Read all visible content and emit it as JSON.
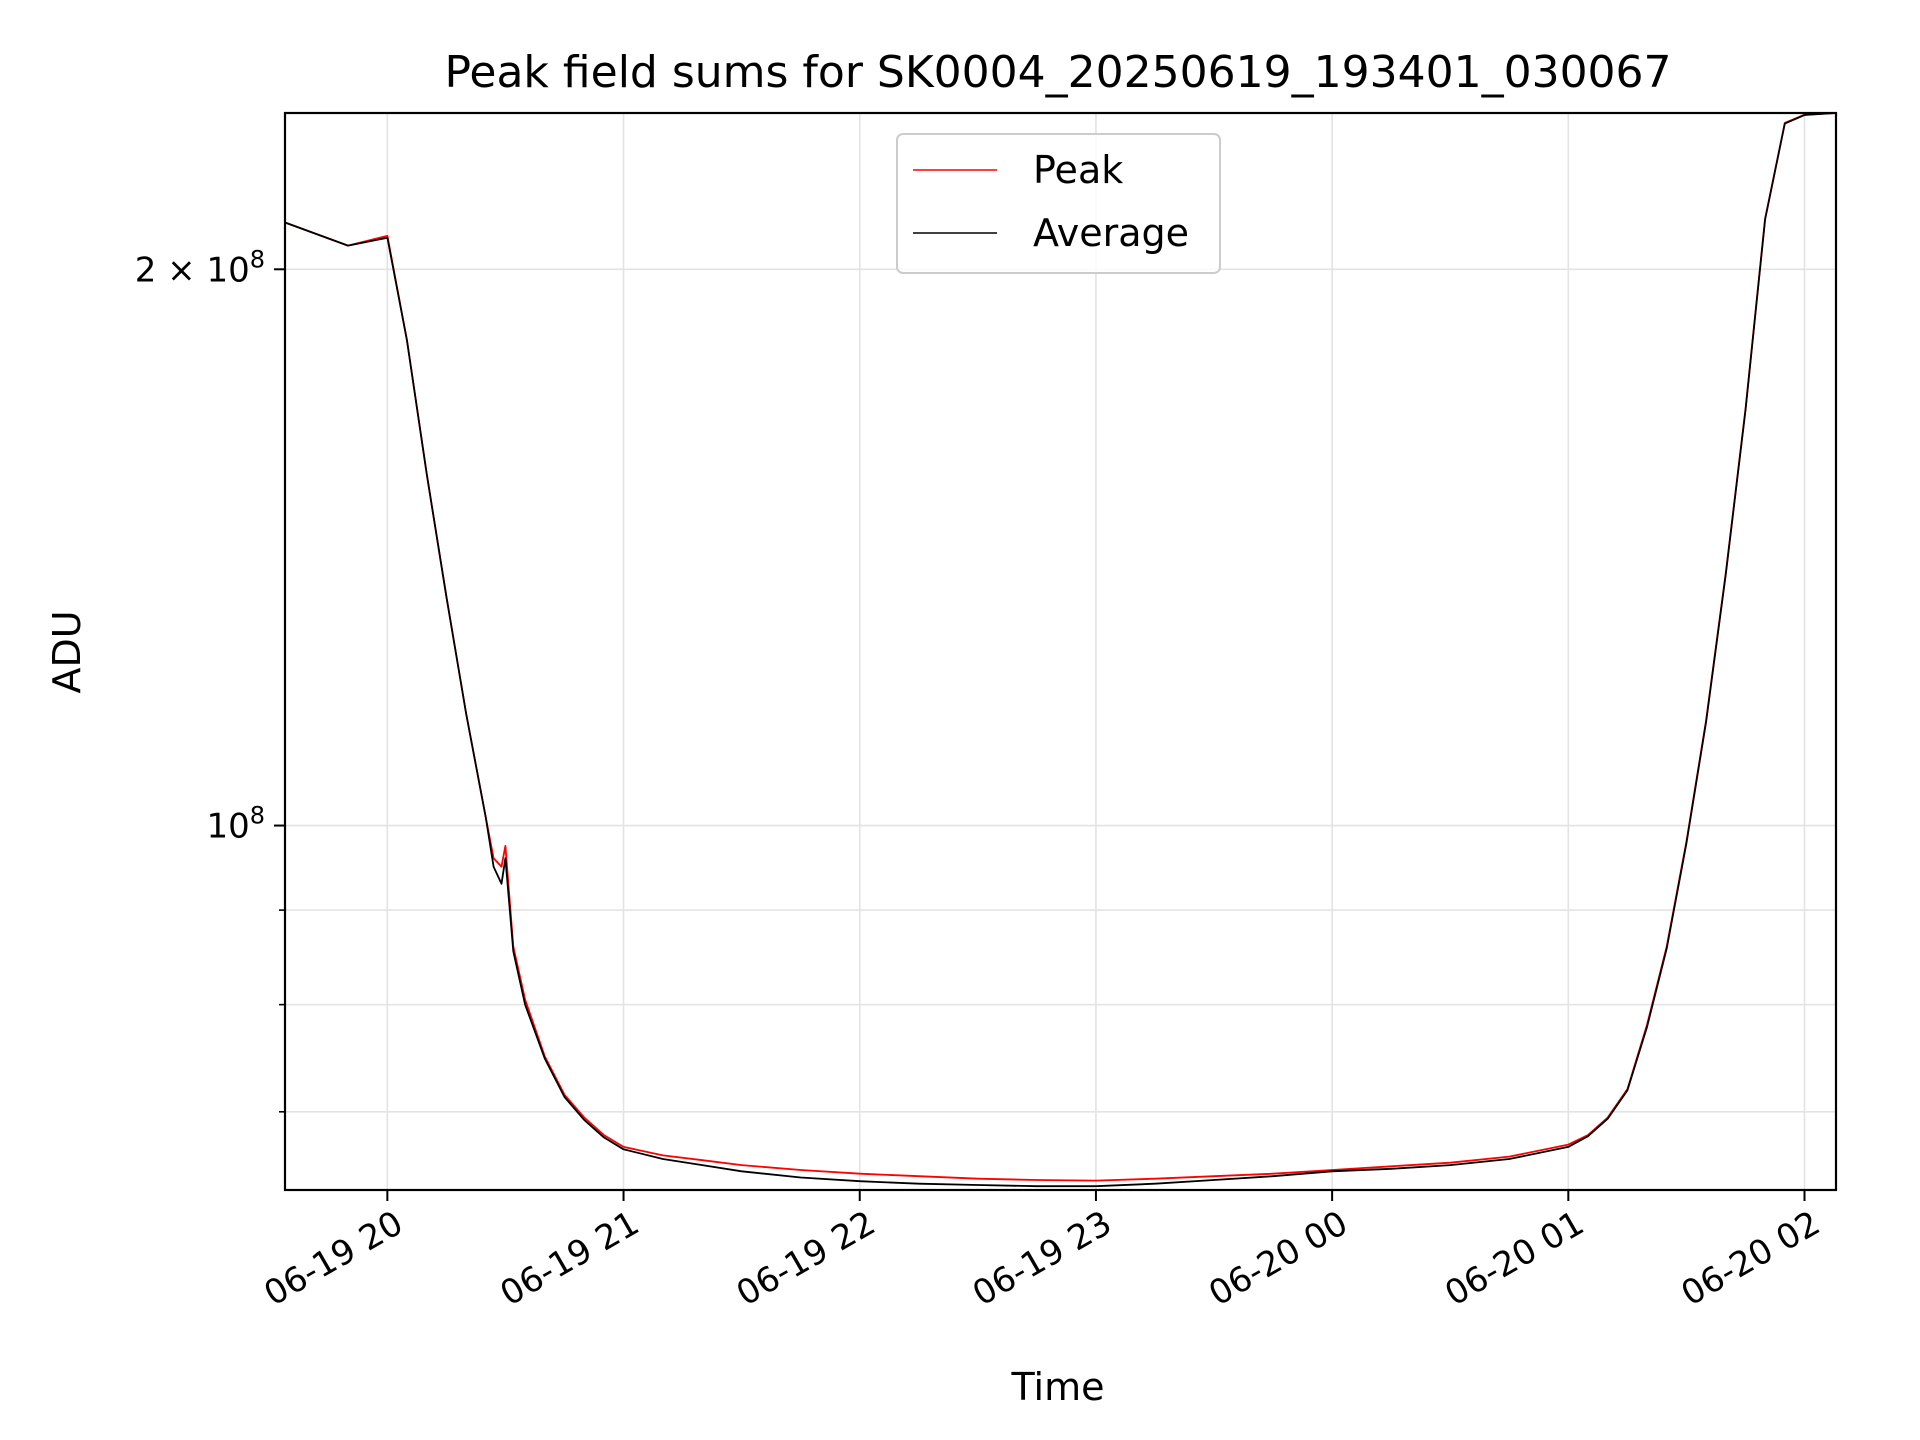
{
  "chart_data": {
    "type": "line",
    "title": "Peak field sums for SK0004_20250619_193401_030067",
    "xlabel": "Time",
    "ylabel": "ADU",
    "x_ticks": [
      "06-19 20",
      "06-19 21",
      "06-19 22",
      "06-19 23",
      "06-20 00",
      "06-20 01",
      "06-20 02"
    ],
    "y_ticks": [
      {
        "value": 100000000,
        "base": "10",
        "exp": "8",
        "prefix": ""
      },
      {
        "value": 200000000,
        "base": "10",
        "exp": "8",
        "prefix": "2 × "
      }
    ],
    "y_scale": "log",
    "ylim": [
      63500000,
      243000000
    ],
    "xlim": [
      "2025-06-19 19:34",
      "2025-06-20 02:08"
    ],
    "grid": true,
    "legend": {
      "position": "top-center"
    },
    "series": [
      {
        "name": "Peak",
        "color": "#ff0000",
        "x": [
          "2025-06-19 19:34",
          "2025-06-19 19:50",
          "2025-06-19 20:00",
          "2025-06-19 20:05",
          "2025-06-19 20:10",
          "2025-06-19 20:15",
          "2025-06-19 20:20",
          "2025-06-19 20:25",
          "2025-06-19 20:27",
          "2025-06-19 20:29",
          "2025-06-19 20:30",
          "2025-06-19 20:32",
          "2025-06-19 20:35",
          "2025-06-19 20:40",
          "2025-06-19 20:45",
          "2025-06-19 20:50",
          "2025-06-19 20:55",
          "2025-06-19 21:00",
          "2025-06-19 21:10",
          "2025-06-19 21:20",
          "2025-06-19 21:30",
          "2025-06-19 21:45",
          "2025-06-19 22:00",
          "2025-06-19 22:15",
          "2025-06-19 22:30",
          "2025-06-19 22:45",
          "2025-06-19 23:00",
          "2025-06-19 23:15",
          "2025-06-19 23:30",
          "2025-06-19 23:45",
          "2025-06-20 00:00",
          "2025-06-20 00:15",
          "2025-06-20 00:30",
          "2025-06-20 00:45",
          "2025-06-20 01:00",
          "2025-06-20 01:05",
          "2025-06-20 01:10",
          "2025-06-20 01:15",
          "2025-06-20 01:20",
          "2025-06-20 01:25",
          "2025-06-20 01:30",
          "2025-06-20 01:35",
          "2025-06-20 01:40",
          "2025-06-20 01:45",
          "2025-06-20 01:50",
          "2025-06-20 01:55",
          "2025-06-20 02:00",
          "2025-06-20 02:08"
        ],
        "values": [
          212000000,
          206000000,
          208500000,
          183000000,
          155000000,
          133000000,
          115000000,
          101000000,
          96000000,
          95000000,
          97500000,
          86000000,
          80500000,
          75000000,
          71500000,
          69500000,
          68000000,
          67000000,
          66300000,
          65900000,
          65500000,
          65100000,
          64800000,
          64600000,
          64400000,
          64300000,
          64250000,
          64400000,
          64600000,
          64800000,
          65100000,
          65400000,
          65700000,
          66200000,
          67200000,
          68000000,
          69500000,
          72000000,
          78000000,
          86000000,
          98000000,
          114000000,
          137000000,
          168000000,
          213000000,
          240000000,
          242500000,
          243000000
        ]
      },
      {
        "name": "Average",
        "color": "#000000",
        "x": [
          "2025-06-19 19:34",
          "2025-06-19 19:50",
          "2025-06-19 20:00",
          "2025-06-19 20:05",
          "2025-06-19 20:10",
          "2025-06-19 20:15",
          "2025-06-19 20:20",
          "2025-06-19 20:25",
          "2025-06-19 20:27",
          "2025-06-19 20:29",
          "2025-06-19 20:30",
          "2025-06-19 20:32",
          "2025-06-19 20:35",
          "2025-06-19 20:40",
          "2025-06-19 20:45",
          "2025-06-19 20:50",
          "2025-06-19 20:55",
          "2025-06-19 21:00",
          "2025-06-19 21:10",
          "2025-06-19 21:20",
          "2025-06-19 21:30",
          "2025-06-19 21:45",
          "2025-06-19 22:00",
          "2025-06-19 22:15",
          "2025-06-19 22:30",
          "2025-06-19 22:45",
          "2025-06-19 23:00",
          "2025-06-19 23:15",
          "2025-06-19 23:30",
          "2025-06-19 23:45",
          "2025-06-20 00:00",
          "2025-06-20 00:15",
          "2025-06-20 00:30",
          "2025-06-20 00:45",
          "2025-06-20 01:00",
          "2025-06-20 01:05",
          "2025-06-20 01:10",
          "2025-06-20 01:15",
          "2025-06-20 01:20",
          "2025-06-20 01:25",
          "2025-06-20 01:30",
          "2025-06-20 01:35",
          "2025-06-20 01:40",
          "2025-06-20 01:45",
          "2025-06-20 01:50",
          "2025-06-20 01:55",
          "2025-06-20 02:00",
          "2025-06-20 02:08"
        ],
        "values": [
          212000000,
          206000000,
          208000000,
          183000000,
          155000000,
          133000000,
          115000000,
          101000000,
          95000000,
          93000000,
          96000000,
          85500000,
          80000000,
          74800000,
          71300000,
          69300000,
          67800000,
          66800000,
          66000000,
          65500000,
          65000000,
          64500000,
          64200000,
          64000000,
          63900000,
          63800000,
          63800000,
          64000000,
          64300000,
          64600000,
          65000000,
          65200000,
          65500000,
          66000000,
          67000000,
          67900000,
          69400000,
          71900000,
          77800000,
          85800000,
          97800000,
          113800000,
          136800000,
          167800000,
          212800000,
          239800000,
          242400000,
          243000000
        ]
      }
    ]
  }
}
